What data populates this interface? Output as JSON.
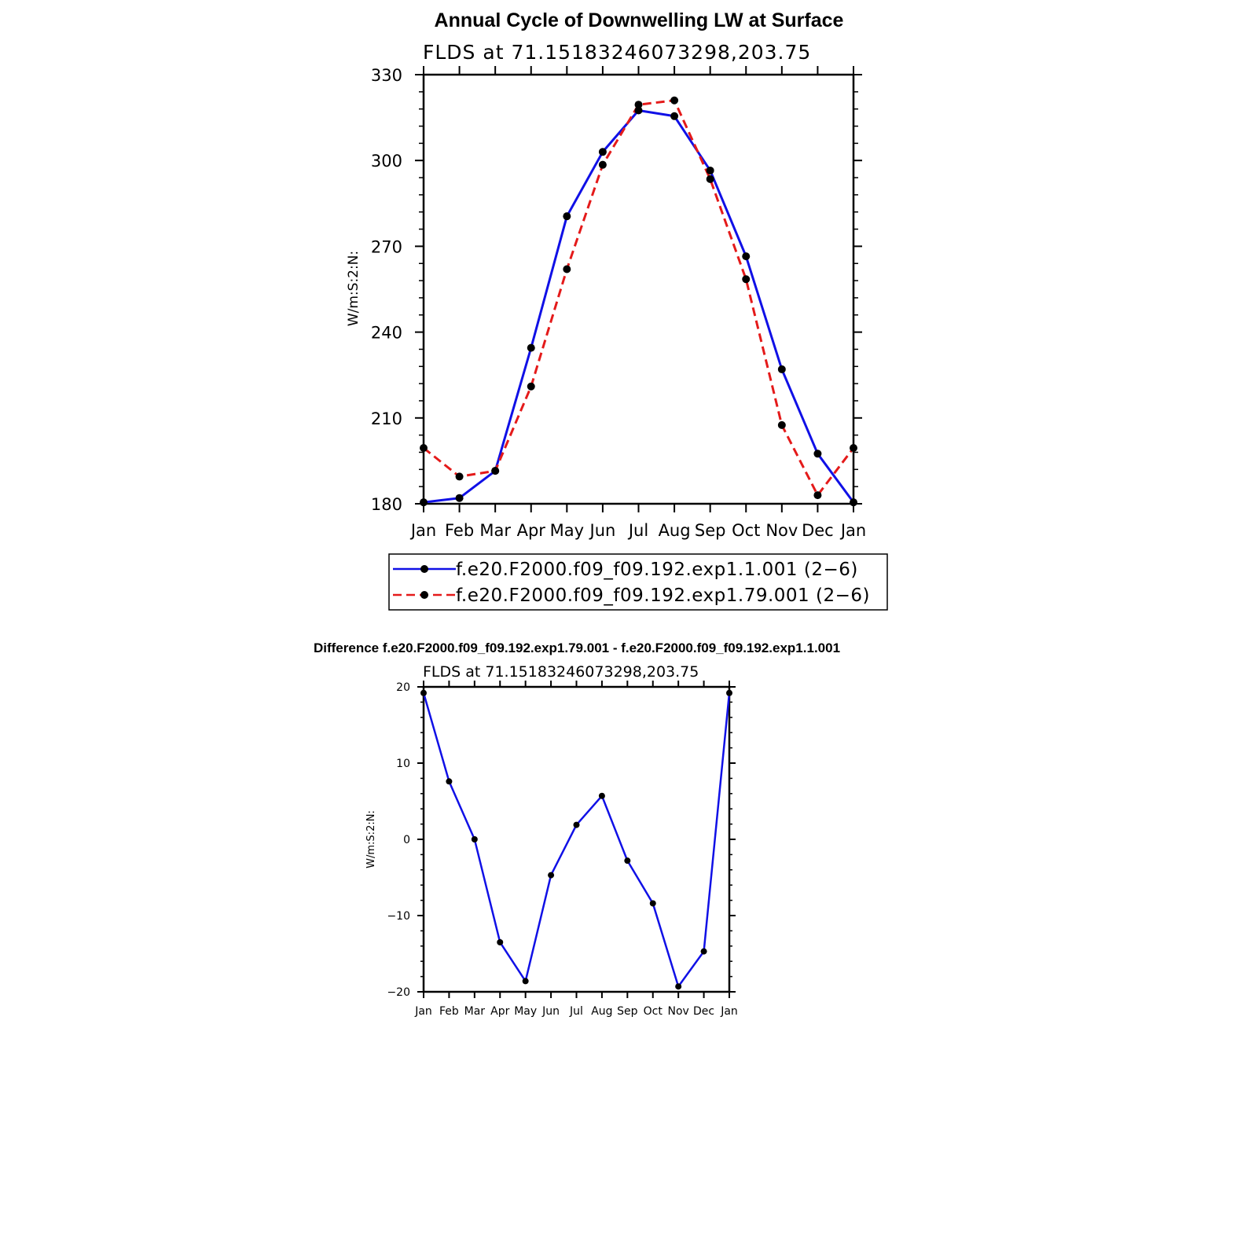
{
  "colors": {
    "series_1": "#1010e6",
    "series_2": "#e41a1a",
    "markers": "#000000",
    "axes": "#000000",
    "background": "#ffffff"
  },
  "chart_data": [
    {
      "type": "line",
      "title": "Annual Cycle of Downwelling LW at Surface",
      "subtitle": "FLDS at 71.15183246073298,203.75",
      "xlabel": "",
      "ylabel": "W/m:S:2:N:",
      "categories": [
        "Jan",
        "Feb",
        "Mar",
        "Apr",
        "May",
        "Jun",
        "Jul",
        "Aug",
        "Sep",
        "Oct",
        "Nov",
        "Dec",
        "Jan"
      ],
      "ylim": [
        180,
        330
      ],
      "y_ticks": [
        180,
        210,
        240,
        270,
        300,
        330
      ],
      "grid": false,
      "legend_position": "bottom",
      "series": [
        {
          "name": "f.e20.F2000.f09_f09.192.exp1.1.001 (2−6)",
          "style": "solid",
          "values": [
            180.5,
            182,
            191.5,
            234.5,
            280.5,
            303,
            317.5,
            315.5,
            296.5,
            266.5,
            227,
            197.5,
            180.5
          ]
        },
        {
          "name": "f.e20.F2000.f09_f09.192.exp1.79.001 (2−6)",
          "style": "dashed",
          "values": [
            199.5,
            189.5,
            191.5,
            221,
            262,
            298.5,
            319.5,
            321,
            293.5,
            258.5,
            207.5,
            183,
            199.5
          ]
        }
      ]
    },
    {
      "type": "line",
      "title": "Difference f.e20.F2000.f09_f09.192.exp1.79.001 - f.e20.F2000.f09_f09.192.exp1.1.001",
      "subtitle": "FLDS at 71.15183246073298,203.75",
      "xlabel": "",
      "ylabel": "W/m:S:2:N:",
      "categories": [
        "Jan",
        "Feb",
        "Mar",
        "Apr",
        "May",
        "Jun",
        "Jul",
        "Aug",
        "Sep",
        "Oct",
        "Nov",
        "Dec",
        "Jan"
      ],
      "ylim": [
        -20,
        20
      ],
      "y_ticks": [
        -20,
        -10,
        0,
        10,
        20
      ],
      "y_tick_labels": [
        "−20",
        "−10",
        "0",
        "10",
        "20"
      ],
      "grid": false,
      "series": [
        {
          "style": "solid",
          "values": [
            19.2,
            7.6,
            0,
            -13.5,
            -18.6,
            -4.7,
            1.9,
            5.7,
            -2.8,
            -8.4,
            -19.3,
            -14.7,
            19.2
          ]
        }
      ]
    }
  ]
}
